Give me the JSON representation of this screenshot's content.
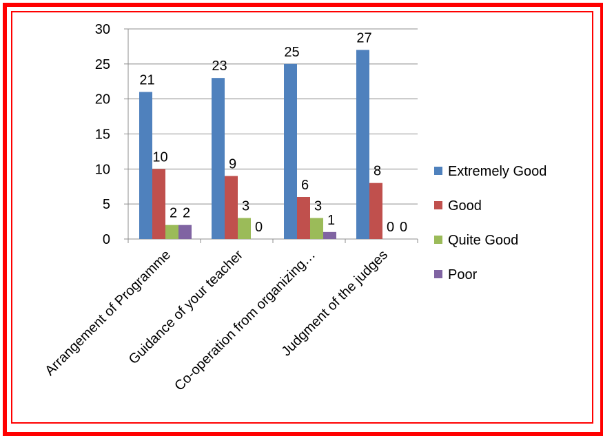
{
  "chart_data": {
    "type": "bar",
    "title": "",
    "xlabel": "",
    "ylabel": "",
    "ylim": [
      0,
      30
    ],
    "yticks": [
      0,
      5,
      10,
      15,
      20,
      25,
      30
    ],
    "grid": true,
    "legend_position": "right",
    "categories": [
      "Arrangement of Programme",
      "Guidance of your teacher",
      "Co-operation from organizing…",
      "Judgment of the judges"
    ],
    "series": [
      {
        "name": "Extremely Good",
        "color": "#4f81bd",
        "values": [
          21,
          23,
          25,
          27
        ],
        "labels": [
          "21",
          "23",
          "25",
          "27"
        ]
      },
      {
        "name": "Good",
        "color": "#c0504d",
        "values": [
          10,
          9,
          6,
          8
        ],
        "labels": [
          "10",
          "9",
          "6",
          "8"
        ]
      },
      {
        "name": "Quite Good",
        "color": "#9bbb59",
        "values": [
          2,
          3,
          3,
          0
        ],
        "labels": [
          "2",
          "3",
          "3",
          "0"
        ]
      },
      {
        "name": "Poor",
        "color": "#8064a2",
        "values": [
          2,
          0,
          1,
          0
        ],
        "labels": [
          "2",
          "0",
          "1",
          "0"
        ]
      }
    ]
  }
}
